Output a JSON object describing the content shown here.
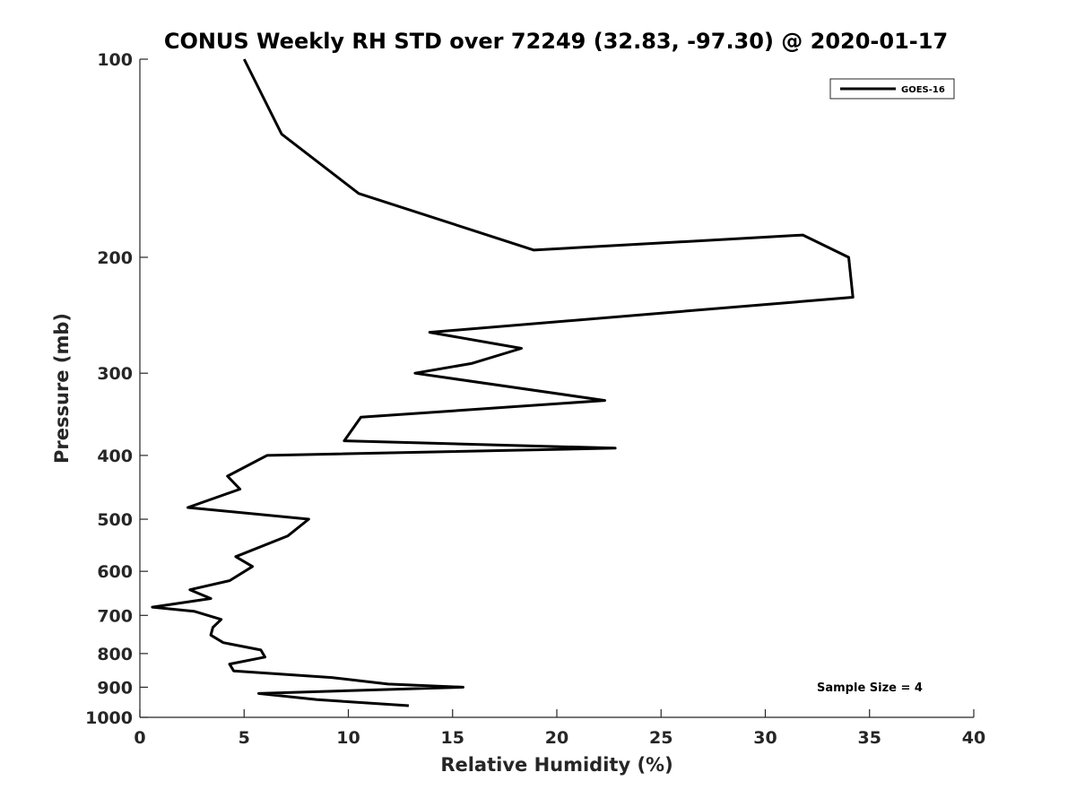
{
  "chart_data": {
    "type": "line",
    "title": "CONUS Weekly RH STD over 72249 (32.83, -97.30) @ 2020-01-17",
    "xlabel": "Relative Humidity (%)",
    "ylabel": "Pressure (mb)",
    "xlim": [
      0,
      40
    ],
    "ylim": [
      100,
      1000
    ],
    "yscale": "log",
    "y_reversed": true,
    "xticks": [
      0,
      5,
      10,
      15,
      20,
      25,
      30,
      35,
      40
    ],
    "yticks": [
      100,
      200,
      300,
      400,
      500,
      600,
      700,
      800,
      900,
      1000
    ],
    "grid": false,
    "legend_position": "top-right",
    "series": [
      {
        "name": "GOES-16",
        "color": "#000000",
        "x": [
          5.0,
          6.8,
          10.5,
          18.9,
          31.8,
          34.0,
          34.2,
          13.9,
          18.3,
          15.9,
          13.2,
          22.3,
          10.6,
          9.8,
          22.8,
          6.1,
          4.2,
          4.8,
          2.3,
          8.1,
          7.1,
          4.6,
          5.4,
          4.3,
          2.4,
          3.4,
          0.6,
          2.6,
          3.9,
          3.5,
          3.4,
          4.0,
          5.8,
          6.0,
          4.3,
          4.5,
          9.2,
          11.9,
          15.5,
          5.7,
          8.5,
          12.9
        ],
        "y": [
          100,
          130,
          160,
          195,
          185,
          200,
          230,
          260,
          275,
          290,
          300,
          330,
          350,
          380,
          390,
          400,
          430,
          450,
          480,
          500,
          530,
          570,
          590,
          620,
          640,
          660,
          680,
          690,
          710,
          730,
          750,
          770,
          790,
          810,
          830,
          850,
          870,
          890,
          900,
          920,
          940,
          960
        ]
      }
    ],
    "annotations": [
      "Sample Size = 4"
    ]
  }
}
